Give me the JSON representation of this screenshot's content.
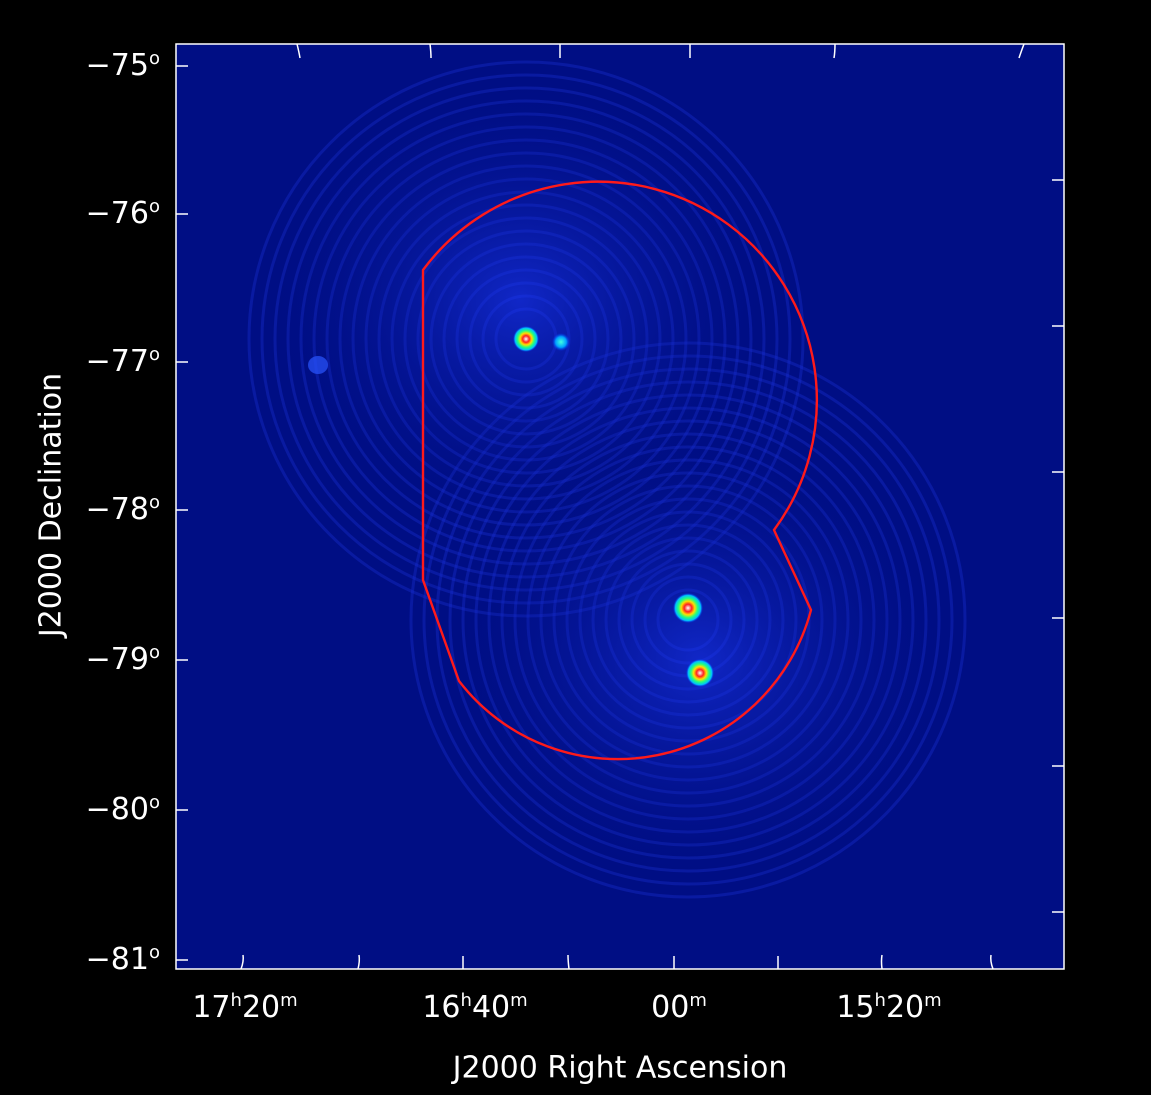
{
  "image": {
    "subject": "radio interferometric image, false color, deep blue background with ring sidelobe pattern",
    "colors": {
      "background": "#000000",
      "sky": "#000e84",
      "frame": "#ffffff",
      "outline": "#ff1a1a"
    }
  },
  "axes": {
    "y_title": "J2000 Declination",
    "x_title": "J2000 Right Ascension",
    "y_ticks": [
      {
        "deg": "−75",
        "sym": "o"
      },
      {
        "deg": "−76",
        "sym": "o"
      },
      {
        "deg": "−77",
        "sym": "o"
      },
      {
        "deg": "−78",
        "sym": "o"
      },
      {
        "deg": "−79",
        "sym": "o"
      },
      {
        "deg": "−80",
        "sym": "o"
      },
      {
        "deg": "−81",
        "sym": "o"
      }
    ],
    "x_ticks": [
      {
        "h": "17",
        "hs": "h",
        "m": "20",
        "ms": "m"
      },
      {
        "h": "16",
        "hs": "h",
        "m": "40",
        "ms": "m"
      },
      {
        "h": "",
        "hs": "",
        "m": "00",
        "ms": "m"
      },
      {
        "h": "15",
        "hs": "h",
        "m": "20",
        "ms": "m"
      }
    ]
  }
}
